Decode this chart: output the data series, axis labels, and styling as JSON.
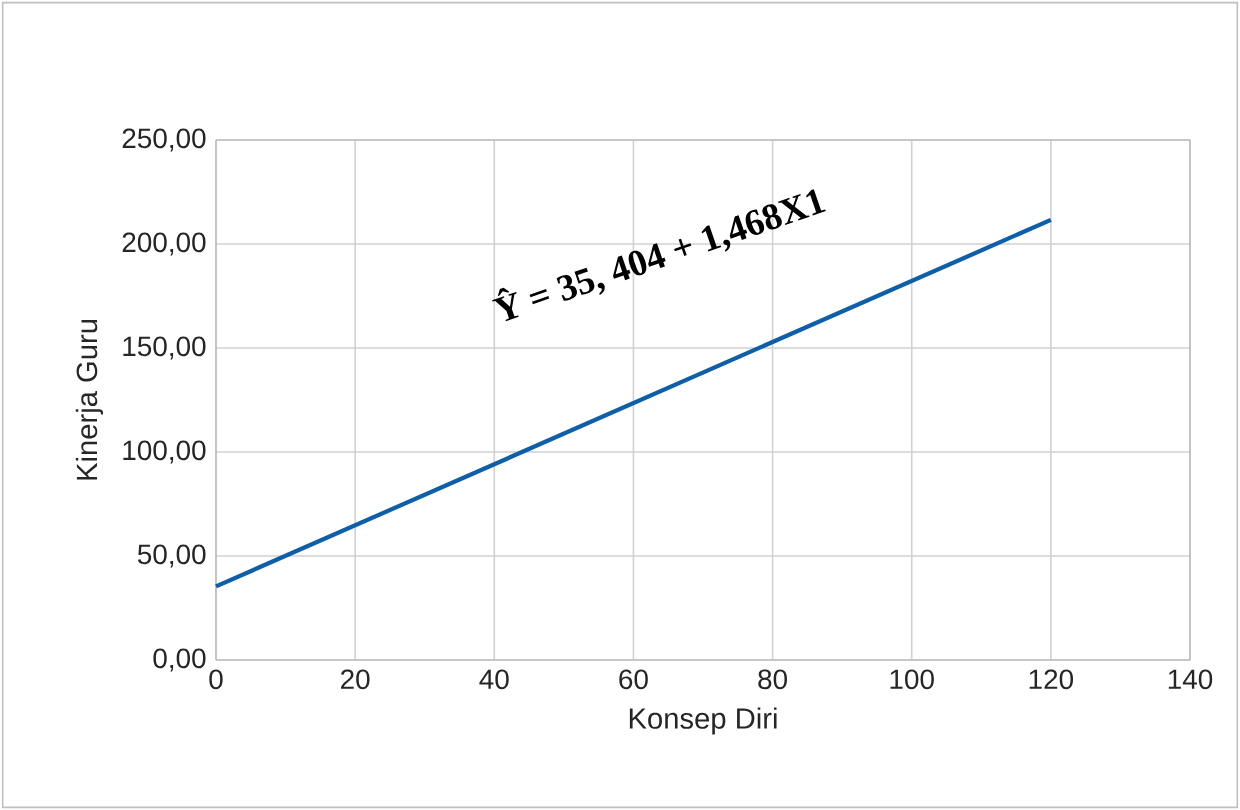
{
  "chart_data": {
    "type": "line",
    "xlabel": "Konsep Diri",
    "ylabel": "Kinerja Guru",
    "x": [
      0,
      120
    ],
    "series": [
      {
        "color": "#0f5fa8",
        "values": [
          35.4,
          211.6
        ]
      }
    ],
    "xlim": [
      0,
      140
    ],
    "xticks": [
      0,
      20,
      40,
      60,
      80,
      100,
      120,
      140
    ],
    "ylim": [
      0,
      250
    ],
    "yticks": [
      {
        "value": 0,
        "label": "0,00"
      },
      {
        "value": 50,
        "label": "50,00"
      },
      {
        "value": 100,
        "label": "100,00"
      },
      {
        "value": 150,
        "label": "150,00"
      },
      {
        "value": 200,
        "label": "200,00"
      },
      {
        "value": 250,
        "label": "250,00"
      }
    ],
    "grid": true,
    "marker": "none",
    "line_style": "solid",
    "annotations": [
      "Ŷ = 35, 404 + 1,468X1"
    ]
  }
}
